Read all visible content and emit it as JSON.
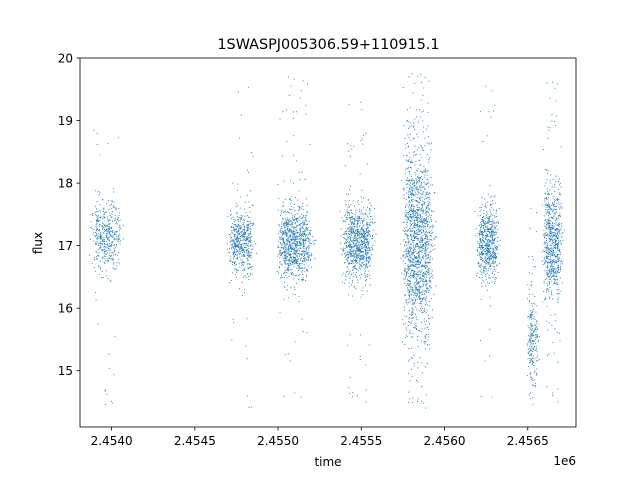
{
  "chart_data": {
    "type": "scatter",
    "title": "1SWASPJ005306.59+110915.1",
    "xlabel": "time",
    "ylabel": "flux",
    "x_offset_label": "1e6",
    "xlim": [
      2.45381,
      2.45679
    ],
    "ylim": [
      14.1,
      20.0
    ],
    "x_ticks": [
      2.454,
      2.4545,
      2.455,
      2.4555,
      2.456,
      2.4565
    ],
    "x_tick_labels": [
      "2.4540",
      "2.4545",
      "2.4550",
      "2.4555",
      "2.4560",
      "2.4565"
    ],
    "y_ticks": [
      15,
      16,
      17,
      18,
      19,
      20
    ],
    "y_tick_labels": [
      "15",
      "16",
      "17",
      "18",
      "19",
      "20"
    ],
    "grid": false,
    "legend": "none",
    "marker_color": "#1f77b4",
    "clusters": [
      {
        "x_center": 2.45397,
        "x_width": 0.00014,
        "y_center": 17.15,
        "y_spread": 0.3,
        "y_min": 14.4,
        "y_max": 19.1,
        "count": 420
      },
      {
        "x_center": 2.45478,
        "x_width": 0.00012,
        "y_center": 17.05,
        "y_spread": 0.25,
        "y_min": 14.4,
        "y_max": 19.6,
        "count": 520
      },
      {
        "x_center": 2.4551,
        "x_width": 0.00016,
        "y_center": 17.05,
        "y_spread": 0.28,
        "y_min": 14.5,
        "y_max": 19.7,
        "count": 900
      },
      {
        "x_center": 2.45548,
        "x_width": 0.00014,
        "y_center": 17.05,
        "y_spread": 0.3,
        "y_min": 14.5,
        "y_max": 19.3,
        "count": 850
      },
      {
        "x_center": 2.45584,
        "x_width": 0.00014,
        "y_center": 17.05,
        "y_spread": 0.75,
        "y_min": 14.4,
        "y_max": 19.75,
        "count": 1500
      },
      {
        "x_center": 2.45626,
        "x_width": 0.0001,
        "y_center": 17.05,
        "y_spread": 0.3,
        "y_min": 14.5,
        "y_max": 19.7,
        "count": 600
      },
      {
        "x_center": 2.45653,
        "x_width": 5e-05,
        "y_center": 15.5,
        "y_spread": 0.35,
        "y_min": 14.4,
        "y_max": 17.6,
        "count": 220
      },
      {
        "x_center": 2.45665,
        "x_width": 9e-05,
        "y_center": 17.05,
        "y_spread": 0.45,
        "y_min": 14.5,
        "y_max": 19.65,
        "count": 700
      }
    ]
  }
}
